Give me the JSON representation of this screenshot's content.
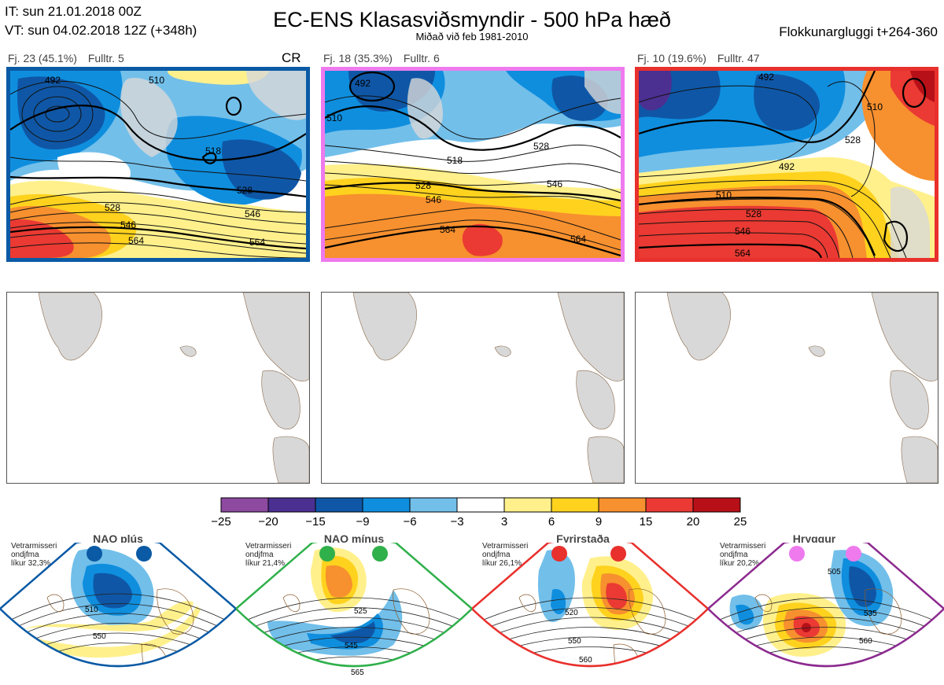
{
  "header": {
    "it": "IT: sun 21.01.2018 00Z",
    "vt": "VT: sun 04.02.2018 12Z  (+348h)",
    "title": "EC-ENS Klasasviðsmyndir - 500 hPa hæð",
    "subtitle": "Miðað við feb 1981-2010",
    "window": "Flokkunargluggi t+264-360"
  },
  "clusters": [
    {
      "count": "Fj. 23 (45.1%)",
      "control": "Fulltr. 5",
      "tag": "CR",
      "border_color": "#0a5aa5",
      "contour_labels": [
        "492",
        "510",
        "518",
        "528",
        "546",
        "564",
        "528",
        "546",
        "564"
      ]
    },
    {
      "count": "Fj. 18 (35.3%)",
      "control": "Fulltr. 6",
      "tag": "",
      "border_color": "#ee7aee",
      "contour_labels": [
        "492",
        "510",
        "518",
        "528",
        "546",
        "564",
        "528",
        "546",
        "564"
      ]
    },
    {
      "count": "Fj. 10 (19.6%)",
      "control": "Fulltr. 47",
      "tag": "",
      "border_color": "#e8302c",
      "contour_labels": [
        "492",
        "510",
        "528",
        "546",
        "564",
        "528",
        "510",
        "492"
      ]
    }
  ],
  "colorbar": {
    "colors": [
      "#8d4aa0",
      "#4b2f91",
      "#0f57a6",
      "#0f8ede",
      "#72bfea",
      "#ffffff",
      "#fff08c",
      "#ffd21e",
      "#f7902e",
      "#ea3a33",
      "#b71018"
    ],
    "ticks": [
      "−25",
      "−20",
      "−15",
      "−9",
      "−6",
      "−3",
      "3",
      "6",
      "9",
      "15",
      "20",
      "25"
    ]
  },
  "regimes": [
    {
      "name": "NAO plús",
      "note": "Vetrarmisseri\nondjfma\nlíkur 32,3%",
      "color": "#0a5aa5",
      "labels": [
        "510",
        "550"
      ]
    },
    {
      "name": "NAO mínus",
      "note": "Vetrarmisseri\nondjfma\nlíkur 21,4%",
      "color": "#2fb04b",
      "labels": [
        "525",
        "545",
        "565"
      ]
    },
    {
      "name": "Fyrirstaða",
      "note": "Vetrarmisseri\nondjfma\nlíkur 26,1%",
      "color": "#e8302c",
      "labels": [
        "520",
        "550",
        "560"
      ]
    },
    {
      "name": "Hryggur",
      "note": "Vetrarmisseri\nondjfma\nlíkur 20,2%",
      "color": "#8b2a8f",
      "labels": [
        "505",
        "535",
        "560"
      ]
    }
  ]
}
